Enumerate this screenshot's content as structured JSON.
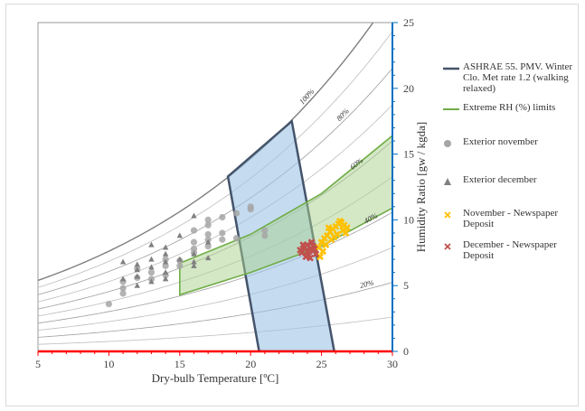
{
  "chart_data": {
    "type": "scatter",
    "xlabel": "Dry-bulb Temperature [ºC]",
    "ylabel": "Humidity Ratio [gw / kgda]",
    "xlim": [
      5,
      30
    ],
    "ylim": [
      0,
      25
    ],
    "x_ticks": [
      5,
      10,
      15,
      20,
      25,
      30
    ],
    "y_ticks": [
      0,
      5,
      10,
      15,
      20,
      25
    ],
    "y_axis_side": "right",
    "grid": false,
    "legend_position": "right",
    "rh_curves": [
      {
        "label": "100%",
        "rh": 100,
        "color": "#7f7f7f"
      },
      {
        "label": "90%",
        "rh": 90,
        "color": "#bdbdbd"
      },
      {
        "label": "80%",
        "rh": 80,
        "color": "#9e9e9e"
      },
      {
        "label": "70%",
        "rh": 70,
        "color": "#bdbdbd"
      },
      {
        "label": "60%",
        "rh": 60,
        "color": "#9e9e9e"
      },
      {
        "label": "50%",
        "rh": 50,
        "color": "#bdbdbd"
      },
      {
        "label": "40%",
        "rh": 40,
        "color": "#9e9e9e"
      },
      {
        "label": "30%",
        "rh": 30,
        "color": "#bdbdbd"
      },
      {
        "label": "20%",
        "rh": 20,
        "color": "#9e9e9e"
      },
      {
        "label": "10%",
        "rh": 10,
        "color": "#bdbdbd"
      }
    ],
    "series": [
      {
        "name": "ASHRAE 55. PMV. Winter Clo. Met rate 1.2 (walking relaxed)",
        "kind": "region",
        "stroke": "#44546a",
        "fill": "#9dc3e6",
        "points": [
          [
            20.6,
            0
          ],
          [
            25.9,
            0
          ],
          [
            22.9,
            17.5
          ],
          [
            18.4,
            13.3
          ]
        ]
      },
      {
        "name": "Extreme RH (%) limits",
        "kind": "region",
        "stroke": "#70ad47",
        "fill": "#a9d18e",
        "points": [
          [
            15,
            4.3
          ],
          [
            15,
            6.7
          ],
          [
            20,
            8.9
          ],
          [
            25,
            12.0
          ],
          [
            30,
            16.4
          ],
          [
            30,
            10.9
          ],
          [
            25,
            8.0
          ],
          [
            20,
            6.0
          ],
          [
            15,
            4.3
          ]
        ]
      },
      {
        "name": "Exterior november",
        "kind": "points",
        "marker": "circle",
        "color": "#a6a6a6",
        "points": [
          [
            10,
            3.6
          ],
          [
            11,
            4.8
          ],
          [
            11,
            5.3
          ],
          [
            11,
            4.4
          ],
          [
            12,
            5.6
          ],
          [
            12,
            6.3
          ],
          [
            13,
            5.5
          ],
          [
            13,
            6.0
          ],
          [
            14,
            6.5
          ],
          [
            14,
            5.8
          ],
          [
            14,
            7.0
          ],
          [
            15,
            6.5
          ],
          [
            15,
            6.9
          ],
          [
            16,
            7.5
          ],
          [
            16,
            7.8
          ],
          [
            16,
            8.3
          ],
          [
            16,
            9.2
          ],
          [
            17,
            8.0
          ],
          [
            17,
            8.5
          ],
          [
            17,
            8.9
          ],
          [
            17,
            9.6
          ],
          [
            17,
            10.0
          ],
          [
            18,
            10.2
          ],
          [
            18,
            8.5
          ],
          [
            18,
            9.0
          ],
          [
            19,
            8.6
          ],
          [
            19,
            10.5
          ],
          [
            20,
            10.8
          ],
          [
            20,
            11.0
          ],
          [
            21,
            8.8
          ],
          [
            21,
            9.2
          ]
        ]
      },
      {
        "name": "Exterior december",
        "kind": "points",
        "marker": "triangle",
        "color": "#808080",
        "points": [
          [
            11,
            6.8
          ],
          [
            11,
            5.5
          ],
          [
            12,
            5.7
          ],
          [
            12,
            6.2
          ],
          [
            12,
            6.6
          ],
          [
            12,
            5.0
          ],
          [
            13,
            6.4
          ],
          [
            13,
            7.0
          ],
          [
            13,
            5.3
          ],
          [
            13,
            8.1
          ],
          [
            14,
            6.8
          ],
          [
            14,
            7.4
          ],
          [
            14,
            6.0
          ],
          [
            14,
            7.9
          ],
          [
            14,
            5.5
          ],
          [
            15,
            7.0
          ],
          [
            15,
            8.8
          ],
          [
            16,
            6.5
          ],
          [
            16,
            7.4
          ],
          [
            16,
            10.3
          ],
          [
            17,
            7.1
          ],
          [
            17,
            8.3
          ],
          [
            16,
            6.8
          ]
        ]
      },
      {
        "name": "November - Newspaper Deposit",
        "kind": "points",
        "marker": "x",
        "color": "#ffc000",
        "points": [
          [
            24.6,
            7.4
          ],
          [
            24.8,
            7.9
          ],
          [
            25.0,
            8.3
          ],
          [
            25.2,
            8.6
          ],
          [
            25.4,
            8.8
          ],
          [
            25.6,
            9.1
          ],
          [
            25.8,
            9.3
          ],
          [
            26.0,
            9.5
          ],
          [
            26.2,
            9.7
          ],
          [
            26.4,
            9.8
          ],
          [
            26.6,
            9.6
          ],
          [
            26.8,
            9.4
          ],
          [
            25.1,
            7.6
          ],
          [
            25.3,
            8.1
          ],
          [
            25.7,
            8.5
          ],
          [
            26.1,
            8.9
          ],
          [
            26.5,
            9.2
          ],
          [
            24.9,
            7.2
          ],
          [
            25.5,
            9.4
          ],
          [
            26.3,
            9.9
          ],
          [
            26.7,
            9.0
          ],
          [
            25.9,
            8.7
          ]
        ]
      },
      {
        "name": "December - Newspaper Deposit",
        "kind": "points",
        "marker": "x",
        "color": "#c0504d",
        "points": [
          [
            23.6,
            7.5
          ],
          [
            23.8,
            7.9
          ],
          [
            24.0,
            8.1
          ],
          [
            24.2,
            7.7
          ],
          [
            24.4,
            8.0
          ],
          [
            24.6,
            7.4
          ],
          [
            23.9,
            7.2
          ],
          [
            24.3,
            8.3
          ],
          [
            24.1,
            7.3
          ],
          [
            23.7,
            8.1
          ],
          [
            24.5,
            7.8
          ],
          [
            24.0,
            7.6
          ],
          [
            23.5,
            7.7
          ],
          [
            24.2,
            7.1
          ]
        ]
      }
    ]
  }
}
